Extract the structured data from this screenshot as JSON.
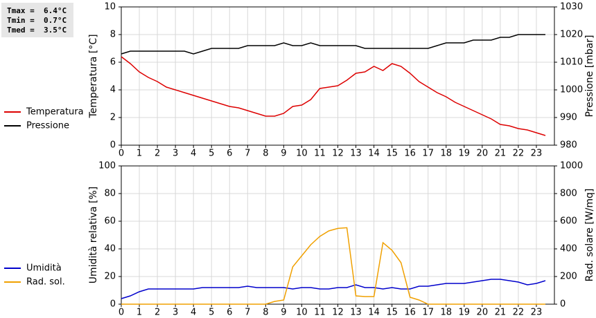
{
  "chart_data": [
    {
      "type": "line",
      "annotations": [
        "Tmax =  6.4°C",
        "Tmin =  0.7°C",
        "Tmed =  3.5°C"
      ],
      "ylabel": "Temperatura [°C]",
      "y2label": "Pressione [mbar]",
      "x": [
        0,
        0.5,
        1,
        1.5,
        2,
        2.5,
        3,
        3.5,
        4,
        4.5,
        5,
        5.5,
        6,
        6.5,
        7,
        7.5,
        8,
        8.5,
        9,
        9.5,
        10,
        10.5,
        11,
        11.5,
        12,
        12.5,
        13,
        13.5,
        14,
        14.5,
        15,
        15.5,
        16,
        16.5,
        17,
        17.5,
        18,
        18.5,
        19,
        19.5,
        20,
        20.5,
        21,
        21.5,
        22,
        22.5,
        23,
        23.5
      ],
      "xlim": [
        0,
        24
      ],
      "xticks": [
        0,
        1,
        2,
        3,
        4,
        5,
        6,
        7,
        8,
        9,
        10,
        11,
        12,
        13,
        14,
        15,
        16,
        17,
        18,
        19,
        20,
        21,
        22,
        23
      ],
      "ylim": [
        0,
        10
      ],
      "yticks": [
        0,
        2,
        4,
        6,
        8,
        10
      ],
      "y2lim": [
        980,
        1030
      ],
      "y2ticks": [
        980,
        990,
        1000,
        1010,
        1020,
        1030
      ],
      "grid": true,
      "series": [
        {
          "name": "Temperatura",
          "color": "#dd0000",
          "values": [
            6.4,
            5.9,
            5.3,
            4.9,
            4.6,
            4.2,
            4.0,
            3.8,
            3.6,
            3.4,
            3.2,
            3.0,
            2.8,
            2.7,
            2.5,
            2.3,
            2.1,
            2.1,
            2.3,
            2.8,
            2.9,
            3.3,
            4.1,
            4.2,
            4.3,
            4.7,
            5.2,
            5.3,
            5.7,
            5.4,
            5.9,
            5.7,
            5.2,
            4.6,
            4.2,
            3.8,
            3.5,
            3.1,
            2.8,
            2.5,
            2.2,
            1.9,
            1.5,
            1.4,
            1.2,
            1.1,
            0.9,
            0.7
          ]
        },
        {
          "name": "Pressione",
          "color": "#000000",
          "axis": "y2",
          "values": [
            1013,
            1014,
            1014,
            1014,
            1014,
            1014,
            1014,
            1014,
            1013,
            1014,
            1015,
            1015,
            1015,
            1015,
            1016,
            1016,
            1016,
            1016,
            1017,
            1016,
            1016,
            1017,
            1016,
            1016,
            1016,
            1016,
            1016,
            1015,
            1015,
            1015,
            1015,
            1015,
            1015,
            1015,
            1015,
            1016,
            1017,
            1017,
            1017,
            1018,
            1018,
            1018,
            1019,
            1019,
            1020,
            1020,
            1020,
            1020
          ]
        }
      ]
    },
    {
      "type": "line",
      "ylabel": "Umidità relativa [%]",
      "y2label": "Rad. solare [W/mq]",
      "x": [
        0,
        0.5,
        1,
        1.5,
        2,
        2.5,
        3,
        3.5,
        4,
        4.5,
        5,
        5.5,
        6,
        6.5,
        7,
        7.5,
        8,
        8.5,
        9,
        9.5,
        10,
        10.5,
        11,
        11.5,
        12,
        12.5,
        13,
        13.5,
        14,
        14.5,
        15,
        15.5,
        16,
        16.5,
        17,
        17.5,
        18,
        18.5,
        19,
        19.5,
        20,
        20.5,
        21,
        21.5,
        22,
        22.5,
        23,
        23.5
      ],
      "xlim": [
        0,
        24
      ],
      "xticks": [
        0,
        1,
        2,
        3,
        4,
        5,
        6,
        7,
        8,
        9,
        10,
        11,
        12,
        13,
        14,
        15,
        16,
        17,
        18,
        19,
        20,
        21,
        22,
        23
      ],
      "ylim": [
        0,
        100
      ],
      "yticks": [
        0,
        20,
        40,
        60,
        80,
        100
      ],
      "y2lim": [
        0,
        1000
      ],
      "y2ticks": [
        0,
        200,
        400,
        600,
        800,
        1000
      ],
      "grid": true,
      "series": [
        {
          "name": "Umidità",
          "color": "#0000cc",
          "values": [
            4,
            6,
            9,
            11,
            11,
            11,
            11,
            11,
            11,
            12,
            12,
            12,
            12,
            12,
            13,
            12,
            12,
            12,
            12,
            11,
            12,
            12,
            11,
            11,
            12,
            12,
            14,
            12,
            12,
            11,
            12,
            11,
            11,
            13,
            13,
            14,
            15,
            15,
            15,
            16,
            17,
            18,
            18,
            17,
            16,
            14,
            15,
            17
          ]
        },
        {
          "name": "Rad. sol.",
          "color": "#f0a000",
          "axis": "y2",
          "values": [
            0,
            0,
            0,
            0,
            0,
            0,
            0,
            0,
            0,
            0,
            0,
            0,
            0,
            0,
            0,
            0,
            0,
            20,
            30,
            270,
            350,
            430,
            490,
            530,
            548,
            553,
            60,
            55,
            55,
            445,
            390,
            300,
            50,
            30,
            0,
            0,
            0,
            0,
            0,
            0,
            0,
            0,
            0,
            0,
            0,
            0,
            0,
            0
          ]
        }
      ]
    }
  ]
}
